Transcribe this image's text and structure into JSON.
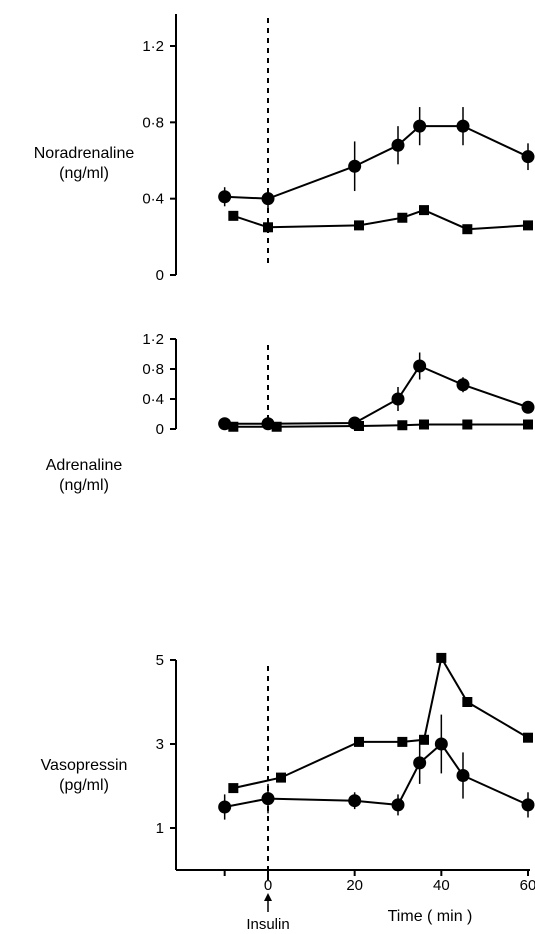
{
  "chart_data": [
    {
      "type": "line",
      "ylabel": [
        "Noradrenaline",
        "(ng/ml)"
      ],
      "ylim": [
        0,
        1.2
      ],
      "yticks": [
        0,
        0.4,
        0.8,
        1.2
      ],
      "ytick_labels": [
        "0",
        "0·4",
        "0·8",
        "1·2"
      ],
      "series": [
        {
          "marker": "circle",
          "x": [
            -10,
            0,
            20,
            30,
            35,
            45,
            60
          ],
          "y": [
            0.41,
            0.4,
            0.57,
            0.68,
            0.78,
            0.78,
            0.62
          ],
          "err": [
            0.05,
            0.05,
            0.13,
            0.1,
            0.1,
            0.1,
            0.07
          ]
        },
        {
          "marker": "square",
          "x": [
            -8,
            0,
            21,
            31,
            36,
            46,
            60
          ],
          "y": [
            0.31,
            0.25,
            0.26,
            0.3,
            0.34,
            0.24,
            0.26
          ],
          "err": []
        }
      ]
    },
    {
      "type": "line",
      "ylabel": [
        "Adrenaline",
        "(ng/ml)"
      ],
      "ylim": [
        0,
        1.2
      ],
      "yticks": [
        0,
        0.4,
        0.8,
        1.2
      ],
      "ytick_labels": [
        "0",
        "0·4",
        "0·8",
        "1·2"
      ],
      "series": [
        {
          "marker": "circle",
          "x": [
            -10,
            0,
            20,
            30,
            35,
            45,
            60
          ],
          "y": [
            0.07,
            0.07,
            0.08,
            0.4,
            0.84,
            0.59,
            0.29
          ],
          "err": [
            0.03,
            0.03,
            0.03,
            0.16,
            0.18,
            0.1,
            0.05
          ]
        },
        {
          "marker": "square",
          "x": [
            -8,
            2,
            21,
            31,
            36,
            46,
            60
          ],
          "y": [
            0.03,
            0.03,
            0.04,
            0.05,
            0.06,
            0.06,
            0.06
          ],
          "err": []
        }
      ]
    },
    {
      "type": "line",
      "ylabel": [
        "Vasopressin",
        "(pg/ml)"
      ],
      "ylim": [
        0,
        5
      ],
      "yticks": [
        1,
        3,
        5
      ],
      "ytick_labels": [
        "1",
        "3",
        "5"
      ],
      "series": [
        {
          "marker": "circle",
          "x": [
            -10,
            0,
            20,
            30,
            35,
            40,
            45,
            60
          ],
          "y": [
            1.5,
            1.7,
            1.65,
            1.55,
            2.55,
            3.0,
            2.25,
            1.55
          ],
          "err": [
            0.3,
            0.35,
            0.2,
            0.25,
            0.5,
            0.7,
            0.55,
            0.3
          ]
        },
        {
          "marker": "square",
          "x": [
            -8,
            3,
            21,
            31,
            36,
            40,
            46,
            60
          ],
          "y": [
            1.95,
            2.2,
            3.05,
            3.05,
            3.1,
            5.05,
            4.0,
            3.15
          ],
          "err": []
        }
      ]
    }
  ],
  "x_axis": {
    "xlim": [
      -15,
      60
    ],
    "ticks": [
      0,
      20,
      40,
      60
    ],
    "tick_labels": [
      "0",
      "20",
      "40",
      "60"
    ],
    "title": "Time ( min )"
  },
  "annotation": {
    "label": "Insulin",
    "x": 0
  }
}
